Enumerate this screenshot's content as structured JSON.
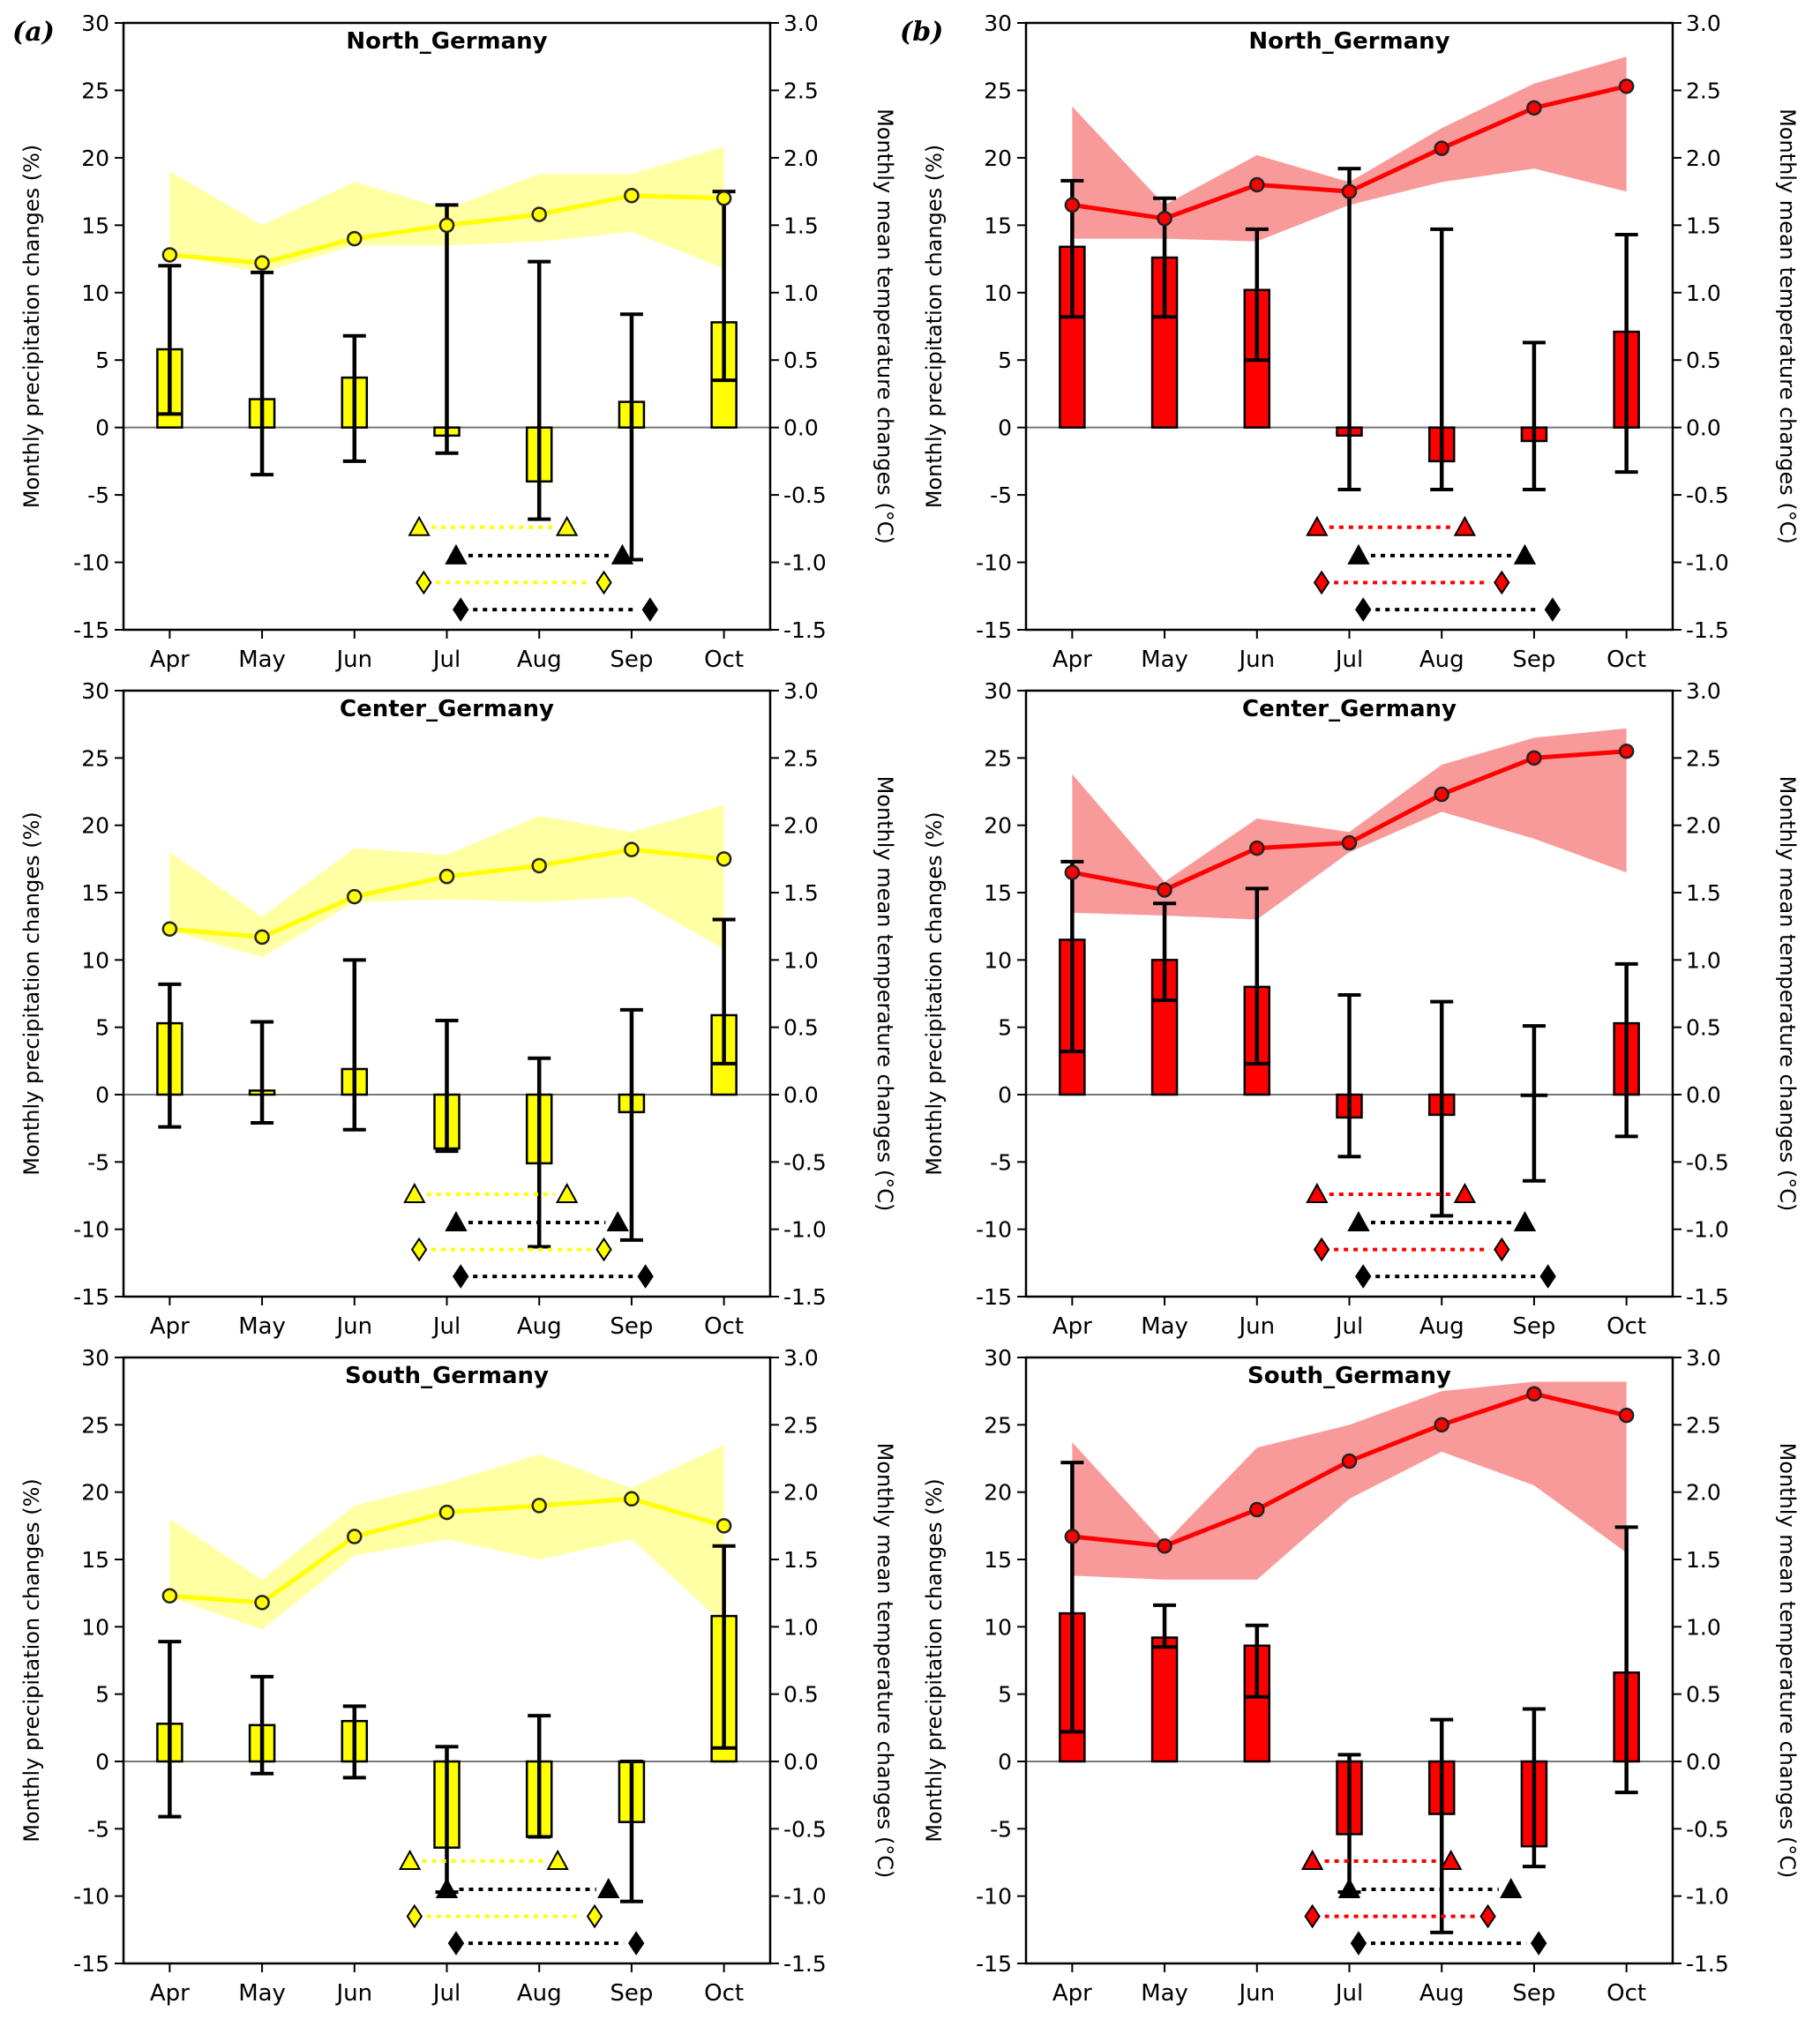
{
  "panel_labels": [
    "(a)",
    "(b)"
  ],
  "chart_data": [
    {
      "type": "bar",
      "panel": "(a)",
      "title": "North_Germany",
      "ylabel": "Monthly precipitation changes (%)",
      "y2label": "Monthly mean temperature changes (°C)",
      "categories": [
        "Apr",
        "May",
        "Jun",
        "Jul",
        "Aug",
        "Sep",
        "Oct"
      ],
      "ylim": [
        -15,
        30
      ],
      "y2lim": [
        -1.5,
        3.0
      ],
      "yticks": [
        "30",
        "25",
        "20",
        "15",
        "10",
        "5",
        "0",
        "-5",
        "-10",
        "-15"
      ],
      "y2ticks": [
        "3.0",
        "2.5",
        "2.0",
        "1.5",
        "1.0",
        "0.5",
        "0.0",
        "-0.5",
        "-1.0",
        "-1.5"
      ],
      "color": "#ffff00",
      "precip_mean": [
        5.8,
        2.1,
        3.7,
        -0.6,
        -4.0,
        1.9,
        7.8
      ],
      "precip_err": [
        [
          1.0,
          12.0
        ],
        [
          -3.5,
          11.5
        ],
        [
          -2.5,
          6.8
        ],
        [
          -1.9,
          16.5
        ],
        [
          -6.8,
          12.3
        ],
        [
          -9.8,
          8.4
        ],
        [
          3.5,
          17.5
        ]
      ],
      "temp_mean": [
        1.28,
        1.22,
        1.4,
        1.5,
        1.58,
        1.72,
        1.7
      ],
      "temp_range": [
        [
          1.28,
          1.9
        ],
        [
          1.15,
          1.5
        ],
        [
          1.35,
          1.82
        ],
        [
          1.35,
          1.62
        ],
        [
          1.38,
          1.88
        ],
        [
          1.45,
          1.88
        ],
        [
          1.18,
          2.08
        ]
      ],
      "significance": [
        {
          "marker": "triangle",
          "color": "#ffff00",
          "x_start": 2.7,
          "x_end": 4.3,
          "y": -7.4
        },
        {
          "marker": "triangle",
          "color": "#000000",
          "x_start": 3.1,
          "x_end": 4.9,
          "y": -9.5
        },
        {
          "marker": "diamond",
          "color": "#ffff00",
          "x_start": 2.75,
          "x_end": 4.7,
          "y": -11.5
        },
        {
          "marker": "diamond",
          "color": "#000000",
          "x_start": 3.15,
          "x_end": 5.2,
          "y": -13.5
        }
      ]
    },
    {
      "type": "bar",
      "panel": "(b)",
      "title": "North_Germany",
      "ylabel": "Monthly precipitation changes (%)",
      "y2label": "Monthly mean temperature changes (°C)",
      "categories": [
        "Apr",
        "May",
        "Jun",
        "Jul",
        "Aug",
        "Sep",
        "Oct"
      ],
      "ylim": [
        -15,
        30
      ],
      "y2lim": [
        -1.5,
        3.0
      ],
      "yticks": [
        "30",
        "25",
        "20",
        "15",
        "10",
        "5",
        "0",
        "-5",
        "-10",
        "-15"
      ],
      "y2ticks": [
        "3.0",
        "2.5",
        "2.0",
        "1.5",
        "1.0",
        "0.5",
        "0.0",
        "-0.5",
        "-1.0",
        "-1.5"
      ],
      "color": "#ff0000",
      "precip_mean": [
        13.4,
        12.6,
        10.2,
        -0.6,
        -2.5,
        -1.0,
        7.1
      ],
      "precip_err": [
        [
          8.2,
          18.3
        ],
        [
          8.2,
          17.0
        ],
        [
          5.0,
          14.7
        ],
        [
          -4.6,
          19.2
        ],
        [
          -4.6,
          14.7
        ],
        [
          -4.6,
          6.3
        ],
        [
          -3.3,
          14.3
        ]
      ],
      "temp_mean": [
        1.65,
        1.55,
        1.8,
        1.75,
        2.07,
        2.37,
        2.53
      ],
      "temp_range": [
        [
          1.4,
          2.38
        ],
        [
          1.4,
          1.65
        ],
        [
          1.38,
          2.02
        ],
        [
          1.65,
          1.82
        ],
        [
          1.82,
          2.22
        ],
        [
          1.92,
          2.55
        ],
        [
          1.75,
          2.75
        ]
      ],
      "significance": [
        {
          "marker": "triangle",
          "color": "#ff0000",
          "x_start": 2.65,
          "x_end": 4.25,
          "y": -7.4
        },
        {
          "marker": "triangle",
          "color": "#000000",
          "x_start": 3.1,
          "x_end": 4.9,
          "y": -9.5
        },
        {
          "marker": "diamond",
          "color": "#ff0000",
          "x_start": 2.7,
          "x_end": 4.65,
          "y": -11.5
        },
        {
          "marker": "diamond",
          "color": "#000000",
          "x_start": 3.15,
          "x_end": 5.2,
          "y": -13.5
        }
      ]
    },
    {
      "type": "bar",
      "panel": "(a)",
      "title": "Center_Germany",
      "ylabel": "Monthly precipitation changes (%)",
      "y2label": "Monthly mean temperature changes (°C)",
      "categories": [
        "Apr",
        "May",
        "Jun",
        "Jul",
        "Aug",
        "Sep",
        "Oct"
      ],
      "ylim": [
        -15,
        30
      ],
      "y2lim": [
        -1.5,
        3.0
      ],
      "yticks": [
        "30",
        "25",
        "20",
        "15",
        "10",
        "5",
        "0",
        "-5",
        "-10",
        "-15"
      ],
      "y2ticks": [
        "3.0",
        "2.5",
        "2.0",
        "1.5",
        "1.0",
        "0.5",
        "0.0",
        "-0.5",
        "-1.0",
        "-1.5"
      ],
      "color": "#ffff00",
      "precip_mean": [
        5.3,
        0.3,
        1.9,
        -4.0,
        -5.1,
        -1.3,
        5.9
      ],
      "precip_err": [
        [
          -2.4,
          8.2
        ],
        [
          -2.1,
          5.4
        ],
        [
          -2.6,
          10.0
        ],
        [
          -4.2,
          5.5
        ],
        [
          -11.3,
          2.7
        ],
        [
          -10.8,
          6.3
        ],
        [
          2.3,
          13.0
        ]
      ],
      "temp_mean": [
        1.23,
        1.17,
        1.47,
        1.62,
        1.7,
        1.82,
        1.75
      ],
      "temp_range": [
        [
          1.22,
          1.8
        ],
        [
          1.02,
          1.32
        ],
        [
          1.43,
          1.83
        ],
        [
          1.45,
          1.78
        ],
        [
          1.43,
          2.07
        ],
        [
          1.47,
          1.95
        ],
        [
          1.08,
          2.15
        ]
      ],
      "significance": [
        {
          "marker": "triangle",
          "color": "#ffff00",
          "x_start": 2.65,
          "x_end": 4.3,
          "y": -7.4
        },
        {
          "marker": "triangle",
          "color": "#000000",
          "x_start": 3.1,
          "x_end": 4.85,
          "y": -9.5
        },
        {
          "marker": "diamond",
          "color": "#ffff00",
          "x_start": 2.7,
          "x_end": 4.7,
          "y": -11.5
        },
        {
          "marker": "diamond",
          "color": "#000000",
          "x_start": 3.15,
          "x_end": 5.15,
          "y": -13.5
        }
      ]
    },
    {
      "type": "bar",
      "panel": "(b)",
      "title": "Center_Germany",
      "ylabel": "Monthly precipitation changes (%)",
      "y2label": "Monthly mean temperature changes (°C)",
      "categories": [
        "Apr",
        "May",
        "Jun",
        "Jul",
        "Aug",
        "Sep",
        "Oct"
      ],
      "ylim": [
        -15,
        30
      ],
      "y2lim": [
        -1.5,
        3.0
      ],
      "yticks": [
        "30",
        "25",
        "20",
        "15",
        "10",
        "5",
        "0",
        "-5",
        "-10",
        "-15"
      ],
      "y2ticks": [
        "3.0",
        "2.5",
        "2.0",
        "1.5",
        "1.0",
        "0.5",
        "0.0",
        "-0.5",
        "-1.0",
        "-1.5"
      ],
      "color": "#ff0000",
      "precip_mean": [
        11.5,
        10.0,
        8.0,
        -1.7,
        -1.5,
        -0.1,
        5.3
      ],
      "precip_err": [
        [
          3.2,
          17.3
        ],
        [
          7.0,
          14.2
        ],
        [
          2.3,
          15.3
        ],
        [
          -4.6,
          7.4
        ],
        [
          -9.0,
          6.9
        ],
        [
          -6.4,
          5.1
        ],
        [
          -3.1,
          9.7
        ]
      ],
      "temp_mean": [
        1.65,
        1.52,
        1.83,
        1.87,
        2.23,
        2.5,
        2.55
      ],
      "temp_range": [
        [
          1.35,
          2.38
        ],
        [
          1.33,
          1.58
        ],
        [
          1.3,
          2.05
        ],
        [
          1.8,
          1.95
        ],
        [
          2.1,
          2.45
        ],
        [
          1.9,
          2.65
        ],
        [
          1.65,
          2.72
        ]
      ],
      "significance": [
        {
          "marker": "triangle",
          "color": "#ff0000",
          "x_start": 2.65,
          "x_end": 4.25,
          "y": -7.4
        },
        {
          "marker": "triangle",
          "color": "#000000",
          "x_start": 3.1,
          "x_end": 4.9,
          "y": -9.5
        },
        {
          "marker": "diamond",
          "color": "#ff0000",
          "x_start": 2.7,
          "x_end": 4.65,
          "y": -11.5
        },
        {
          "marker": "diamond",
          "color": "#000000",
          "x_start": 3.15,
          "x_end": 5.15,
          "y": -13.5
        }
      ]
    },
    {
      "type": "bar",
      "panel": "(a)",
      "title": "South_Germany",
      "ylabel": "Monthly precipitation changes (%)",
      "y2label": "Monthly mean temperature changes (°C)",
      "categories": [
        "Apr",
        "May",
        "Jun",
        "Jul",
        "Aug",
        "Sep",
        "Oct"
      ],
      "ylim": [
        -15,
        30
      ],
      "y2lim": [
        -1.5,
        3.0
      ],
      "yticks": [
        "30",
        "25",
        "20",
        "15",
        "10",
        "5",
        "0",
        "-5",
        "-10",
        "-15"
      ],
      "y2ticks": [
        "3.0",
        "2.5",
        "2.0",
        "1.5",
        "1.0",
        "0.5",
        "0.0",
        "-0.5",
        "-1.0",
        "-1.5"
      ],
      "color": "#ffff00",
      "precip_mean": [
        2.8,
        2.7,
        3.0,
        -6.4,
        -5.6,
        -4.5,
        10.8
      ],
      "precip_err": [
        [
          -4.1,
          8.9
        ],
        [
          -0.9,
          6.3
        ],
        [
          -1.2,
          4.1
        ],
        [
          -9.7,
          1.1
        ],
        [
          -5.6,
          3.4
        ],
        [
          -10.4,
          0.0
        ],
        [
          1.0,
          16.0
        ]
      ],
      "temp_mean": [
        1.23,
        1.18,
        1.67,
        1.85,
        1.9,
        1.95,
        1.75
      ],
      "temp_range": [
        [
          1.22,
          1.8
        ],
        [
          0.98,
          1.35
        ],
        [
          1.53,
          1.9
        ],
        [
          1.65,
          2.07
        ],
        [
          1.5,
          2.28
        ],
        [
          1.65,
          2.03
        ],
        [
          1.02,
          2.35
        ]
      ],
      "significance": [
        {
          "marker": "triangle",
          "color": "#ffff00",
          "x_start": 2.6,
          "x_end": 4.2,
          "y": -7.4
        },
        {
          "marker": "triangle",
          "color": "#000000",
          "x_start": 3.0,
          "x_end": 4.75,
          "y": -9.5
        },
        {
          "marker": "diamond",
          "color": "#ffff00",
          "x_start": 2.65,
          "x_end": 4.6,
          "y": -11.5
        },
        {
          "marker": "diamond",
          "color": "#000000",
          "x_start": 3.1,
          "x_end": 5.05,
          "y": -13.5
        }
      ]
    },
    {
      "type": "bar",
      "panel": "(b)",
      "title": "South_Germany",
      "ylabel": "Monthly precipitation changes (%)",
      "y2label": "Monthly mean temperature changes (°C)",
      "categories": [
        "Apr",
        "May",
        "Jun",
        "Jul",
        "Aug",
        "Sep",
        "Oct"
      ],
      "ylim": [
        -15,
        30
      ],
      "y2lim": [
        -1.5,
        3.0
      ],
      "yticks": [
        "30",
        "25",
        "20",
        "15",
        "10",
        "5",
        "0",
        "-5",
        "-10",
        "-15"
      ],
      "y2ticks": [
        "3.0",
        "2.5",
        "2.0",
        "1.5",
        "1.0",
        "0.5",
        "0.0",
        "-0.5",
        "-1.0",
        "-1.5"
      ],
      "color": "#ff0000",
      "precip_mean": [
        11.0,
        9.2,
        8.6,
        -5.4,
        -3.9,
        -6.3,
        6.6
      ],
      "precip_err": [
        [
          2.2,
          22.2
        ],
        [
          8.5,
          11.6
        ],
        [
          4.8,
          10.1
        ],
        [
          -9.7,
          0.5
        ],
        [
          -12.7,
          3.1
        ],
        [
          -7.8,
          3.9
        ],
        [
          -2.3,
          17.4
        ]
      ],
      "temp_mean": [
        1.67,
        1.6,
        1.87,
        2.23,
        2.5,
        2.73,
        2.57
      ],
      "temp_range": [
        [
          1.38,
          2.37
        ],
        [
          1.35,
          1.62
        ],
        [
          1.35,
          2.33
        ],
        [
          1.95,
          2.5
        ],
        [
          2.3,
          2.75
        ],
        [
          2.05,
          2.82
        ],
        [
          1.55,
          2.82
        ]
      ],
      "significance": [
        {
          "marker": "triangle",
          "color": "#ff0000",
          "x_start": 2.6,
          "x_end": 4.1,
          "y": -7.4
        },
        {
          "marker": "triangle",
          "color": "#000000",
          "x_start": 3.0,
          "x_end": 4.75,
          "y": -9.5
        },
        {
          "marker": "diamond",
          "color": "#ff0000",
          "x_start": 2.6,
          "x_end": 4.5,
          "y": -11.5
        },
        {
          "marker": "diamond",
          "color": "#000000",
          "x_start": 3.1,
          "x_end": 5.05,
          "y": -13.5
        }
      ]
    }
  ]
}
